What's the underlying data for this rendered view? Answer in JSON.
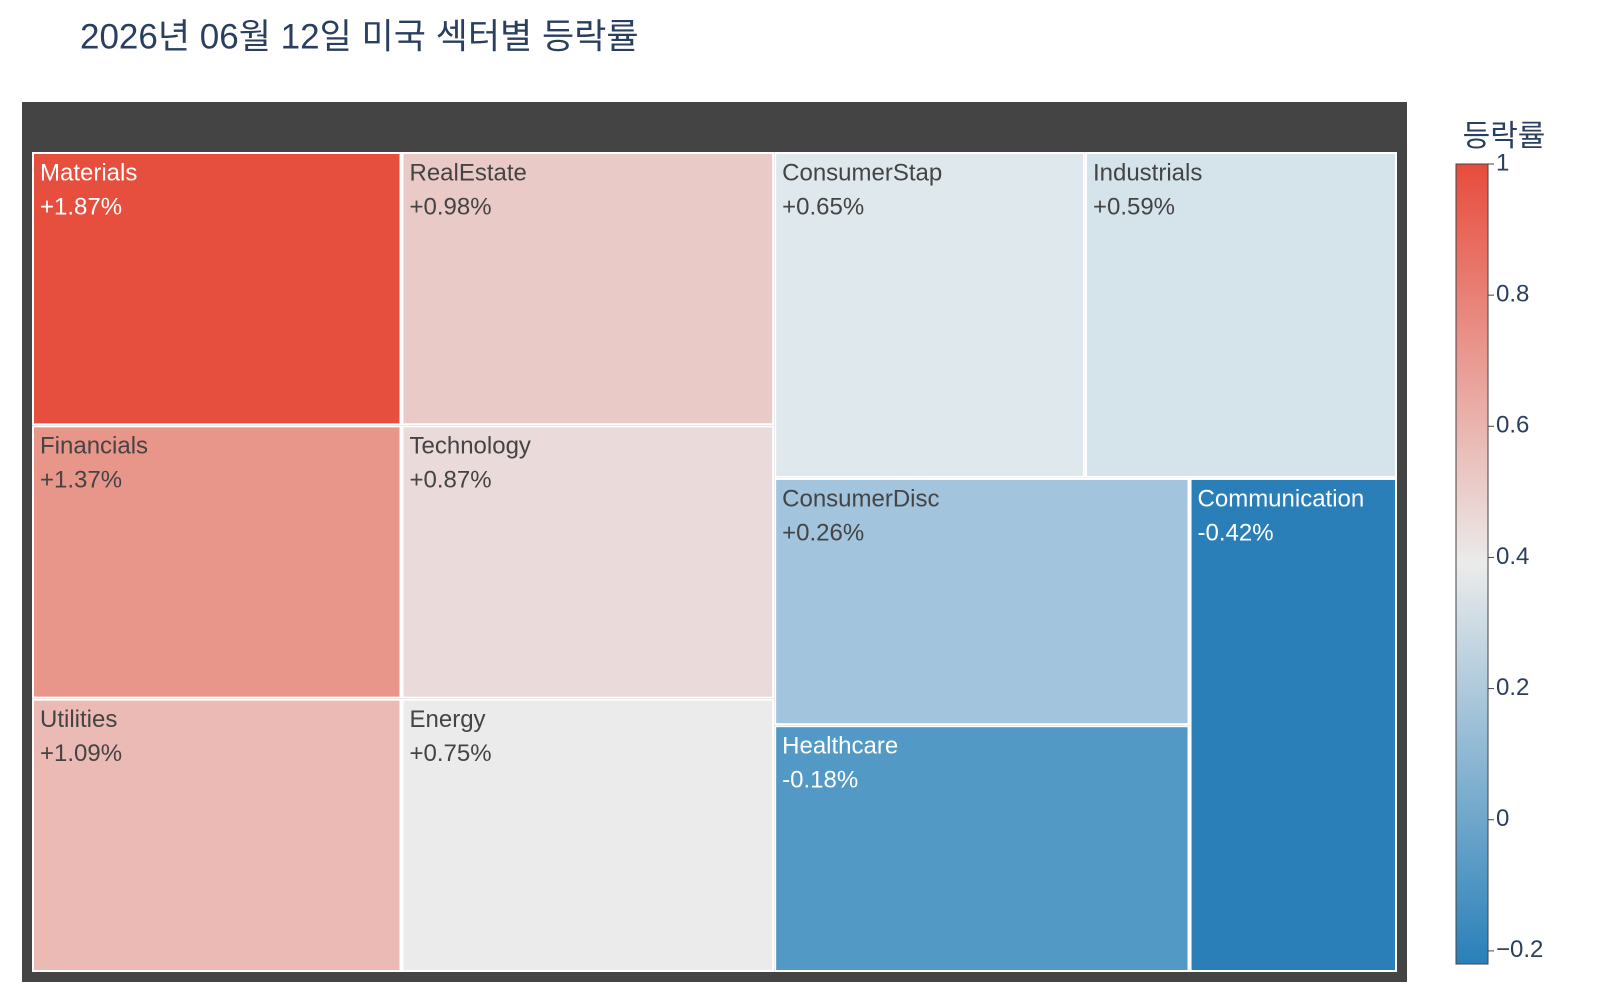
{
  "chart_data": {
    "type": "treemap",
    "title": "2026년 06월 12일 미국 섹터별 등락률",
    "categories": [
      "Materials",
      "RealEstate",
      "ConsumerStap",
      "Industrials",
      "Financials",
      "Technology",
      "ConsumerDisc",
      "Communication",
      "Utilities",
      "Energy",
      "Healthcare"
    ],
    "values": [
      1.87,
      0.98,
      0.65,
      0.59,
      1.37,
      0.87,
      0.26,
      -0.42,
      1.09,
      0.75,
      -0.18
    ],
    "value_labels": [
      "+1.87%",
      "+0.98%",
      "+0.65%",
      "+0.59%",
      "+1.37%",
      "+0.87%",
      "+0.26%",
      "-0.42%",
      "+1.09%",
      "+0.75%",
      "-0.18%"
    ],
    "colors": [
      "#e64e3d",
      "#e9cac7",
      "#dfe8ed",
      "#d5e3ea",
      "#e9968a",
      "#eadada",
      "#a2c4dc",
      "#2a7fb9",
      "#ebbab4",
      "#ebebeb",
      "#5399c6"
    ],
    "colorbar": {
      "title": "등락률",
      "clim": [
        -0.22,
        1
      ],
      "ticks": [
        1,
        0.8,
        0.6,
        0.4,
        0.2,
        0,
        {
          "value": -0.2,
          "label": "−0.2"
        }
      ],
      "colorscale": [
        "#2980b9",
        "#ebebeb",
        "#e74c3c"
      ]
    }
  }
}
